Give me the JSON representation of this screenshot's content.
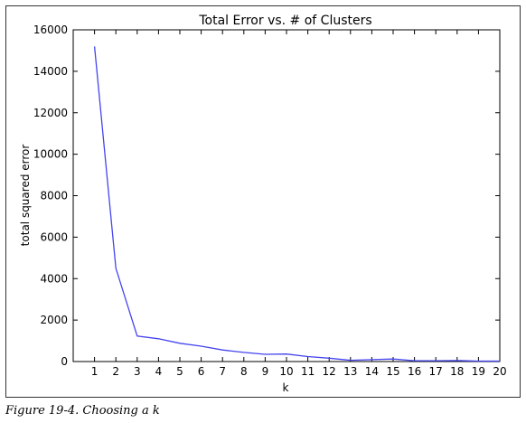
{
  "caption": "Figure 19-4. Choosing a k",
  "colors": {
    "line": "#4444ee",
    "axis": "#000000"
  },
  "chart_data": {
    "type": "line",
    "title": "Total Error vs. # of Clusters",
    "xlabel": "k",
    "ylabel": "total squared error",
    "x": [
      1,
      2,
      3,
      4,
      5,
      6,
      7,
      8,
      9,
      10,
      11,
      12,
      13,
      14,
      15,
      16,
      17,
      18,
      19,
      20
    ],
    "series": [
      {
        "values": [
          15200,
          4500,
          1230,
          1100,
          880,
          740,
          560,
          440,
          350,
          360,
          240,
          160,
          60,
          90,
          120,
          40,
          40,
          50,
          20,
          20
        ]
      }
    ],
    "xlim": [
      0,
      20
    ],
    "ylim": [
      0,
      16000
    ],
    "xticks": [
      1,
      2,
      3,
      4,
      5,
      6,
      7,
      8,
      9,
      10,
      11,
      12,
      13,
      14,
      15,
      16,
      17,
      18,
      19,
      20
    ],
    "yticks": [
      0,
      2000,
      4000,
      6000,
      8000,
      10000,
      12000,
      14000,
      16000
    ],
    "grid": false
  }
}
